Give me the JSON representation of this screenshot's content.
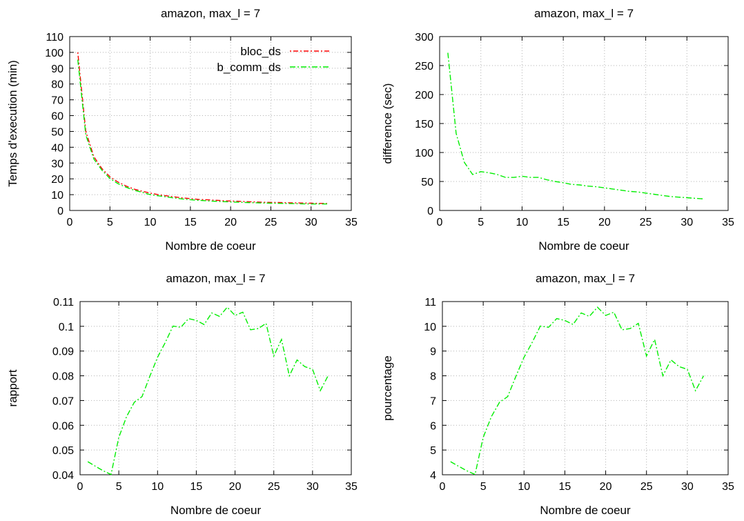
{
  "chart_data": [
    {
      "id": "exec-time",
      "type": "line",
      "title": "amazon, max_l = 7",
      "xlabel": "Nombre de coeur",
      "ylabel": "Temps d'execution (min)",
      "xlim": [
        0,
        35
      ],
      "ylim": [
        0,
        110
      ],
      "xticks": [
        0,
        5,
        10,
        15,
        20,
        25,
        30,
        35
      ],
      "yticks": [
        0,
        10,
        20,
        30,
        40,
        50,
        60,
        70,
        80,
        90,
        100,
        110
      ],
      "grid": true,
      "legend_position": "top-right",
      "x": [
        1,
        2,
        3,
        4,
        5,
        6,
        7,
        8,
        9,
        10,
        11,
        12,
        13,
        14,
        15,
        16,
        17,
        18,
        19,
        20,
        21,
        22,
        23,
        24,
        25,
        26,
        27,
        28,
        29,
        30,
        31,
        32
      ],
      "series": [
        {
          "name": "bloc_ds",
          "color": "#ff0000",
          "dash": "dotdash",
          "values": [
            100,
            50,
            34,
            26.5,
            21.3,
            18,
            15.5,
            13.5,
            12.2,
            11,
            10,
            9.3,
            8.6,
            8,
            7.5,
            7,
            6.8,
            6.5,
            6.2,
            6,
            5.8,
            5.6,
            5.4,
            5.2,
            5.1,
            5,
            4.9,
            4.8,
            4.7,
            4.6,
            4.5,
            4.4
          ]
        },
        {
          "name": "b_comm_ds",
          "color": "#00ee00",
          "dash": "dashdot",
          "values": [
            95.4,
            47.8,
            32.5,
            25.5,
            20.2,
            17,
            14.7,
            12.8,
            11.5,
            10,
            9.3,
            8.6,
            7.9,
            7.3,
            6.8,
            6.4,
            6.1,
            5.8,
            5.6,
            5.4,
            5.2,
            5,
            4.9,
            4.7,
            4.6,
            4.5,
            4.4,
            4.3,
            4.2,
            4.1,
            4.1,
            4.1
          ]
        }
      ]
    },
    {
      "id": "difference",
      "type": "line",
      "title": "amazon, max_l = 7",
      "xlabel": "Nombre de coeur",
      "ylabel": "difference (sec)",
      "xlim": [
        0,
        35
      ],
      "ylim": [
        0,
        300
      ],
      "xticks": [
        0,
        5,
        10,
        15,
        20,
        25,
        30,
        35
      ],
      "yticks": [
        0,
        50,
        100,
        150,
        200,
        250,
        300
      ],
      "grid": true,
      "x": [
        1,
        2,
        3,
        4,
        5,
        6,
        7,
        8,
        9,
        10,
        11,
        12,
        13,
        14,
        15,
        16,
        17,
        18,
        19,
        20,
        21,
        22,
        23,
        24,
        25,
        26,
        27,
        28,
        29,
        30,
        31,
        32
      ],
      "series": [
        {
          "color": "#00ee00",
          "dash": "dashdot",
          "values": [
            272,
            133,
            83,
            62,
            67,
            65,
            62,
            57,
            57,
            59,
            57,
            57,
            53,
            50,
            48,
            45,
            44,
            42,
            41,
            39,
            37,
            35,
            33,
            32,
            30,
            28,
            26,
            24,
            23,
            22,
            21,
            20
          ]
        }
      ]
    },
    {
      "id": "ratio",
      "type": "line",
      "title": "amazon, max_l = 7",
      "xlabel": "Nombre de coeur",
      "ylabel": "rapport",
      "xlim": [
        0,
        35
      ],
      "ylim": [
        0.04,
        0.11
      ],
      "xticks": [
        0,
        5,
        10,
        15,
        20,
        25,
        30,
        35
      ],
      "yticks": [
        0.04,
        0.05,
        0.06,
        0.07,
        0.08,
        0.09,
        0.1,
        0.11
      ],
      "grid": true,
      "x": [
        1,
        2,
        3,
        4,
        5,
        6,
        7,
        8,
        9,
        10,
        11,
        12,
        13,
        14,
        15,
        16,
        17,
        18,
        19,
        20,
        21,
        22,
        23,
        24,
        25,
        26,
        27,
        28,
        29,
        30,
        31,
        32
      ],
      "series": [
        {
          "color": "#00ee00",
          "dash": "dashdot",
          "values": [
            0.0453,
            0.0434,
            0.0416,
            0.0401,
            0.0551,
            0.0635,
            0.0693,
            0.0716,
            0.0798,
            0.0875,
            0.0935,
            0.1001,
            0.0996,
            0.1031,
            0.1024,
            0.1007,
            0.1054,
            0.104,
            0.1077,
            0.1044,
            0.1057,
            0.0986,
            0.0991,
            0.1012,
            0.088,
            0.0947,
            0.08,
            0.0864,
            0.0837,
            0.0826,
            0.074,
            0.08
          ]
        }
      ]
    },
    {
      "id": "percentage",
      "type": "line",
      "title": "amazon, max_l = 7",
      "xlabel": "Nombre de coeur",
      "ylabel": "pourcentage",
      "xlim": [
        0,
        35
      ],
      "ylim": [
        4,
        11
      ],
      "xticks": [
        0,
        5,
        10,
        15,
        20,
        25,
        30,
        35
      ],
      "yticks": [
        4,
        5,
        6,
        7,
        8,
        9,
        10,
        11
      ],
      "grid": true,
      "x": [
        1,
        2,
        3,
        4,
        5,
        6,
        7,
        8,
        9,
        10,
        11,
        12,
        13,
        14,
        15,
        16,
        17,
        18,
        19,
        20,
        21,
        22,
        23,
        24,
        25,
        26,
        27,
        28,
        29,
        30,
        31,
        32
      ],
      "series": [
        {
          "color": "#00ee00",
          "dash": "dashdot",
          "values": [
            4.53,
            4.34,
            4.16,
            4.01,
            5.51,
            6.35,
            6.93,
            7.16,
            7.98,
            8.75,
            9.35,
            10.01,
            9.96,
            10.31,
            10.24,
            10.07,
            10.54,
            10.4,
            10.77,
            10.44,
            10.57,
            9.86,
            9.91,
            10.12,
            8.8,
            9.47,
            8.0,
            8.64,
            8.37,
            8.26,
            7.4,
            8.0
          ]
        }
      ]
    }
  ]
}
